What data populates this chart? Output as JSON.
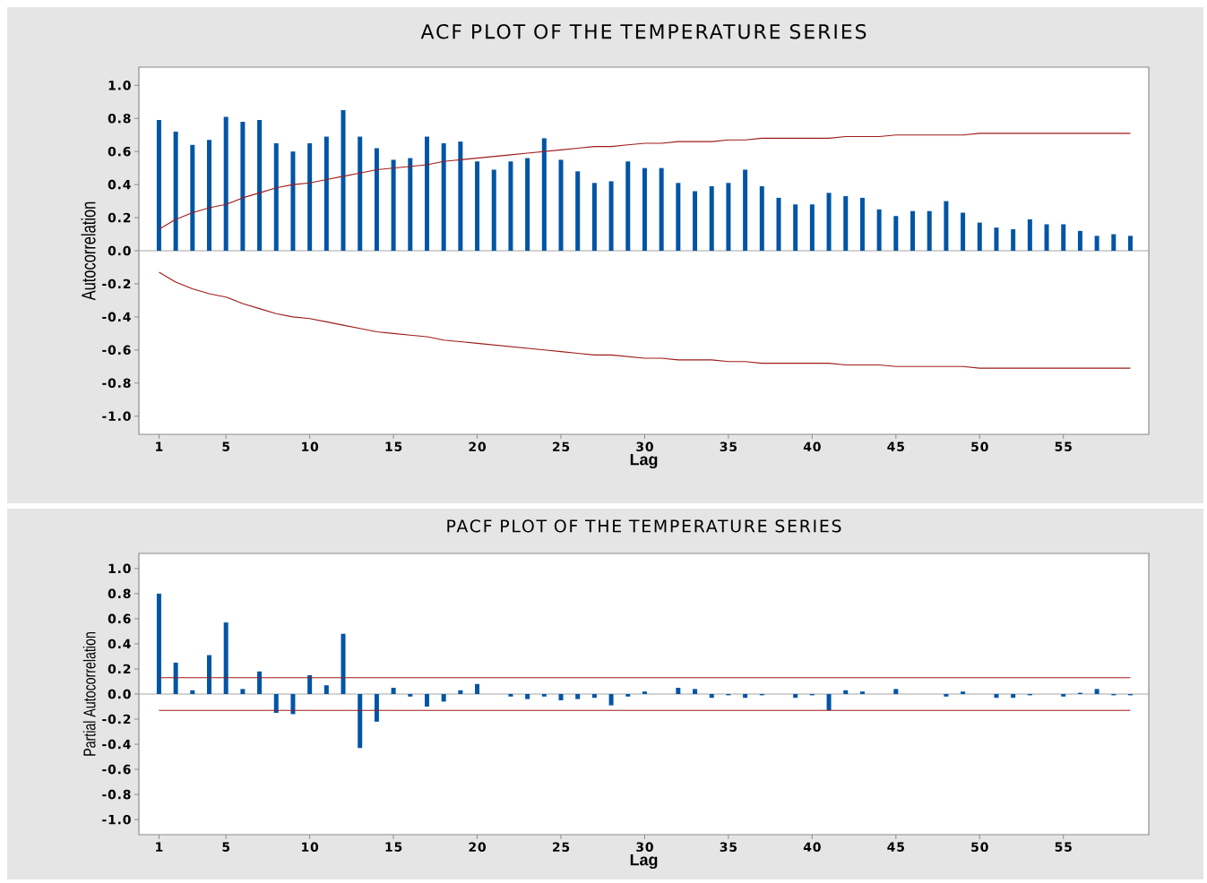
{
  "chart_data": [
    {
      "type": "bar",
      "title": "ACF PLOT OF THE TEMPERATURE SERIES",
      "xlabel": "Lag",
      "ylabel": "Autocorrelation",
      "x": [
        1,
        2,
        3,
        4,
        5,
        6,
        7,
        8,
        9,
        10,
        11,
        12,
        13,
        14,
        15,
        16,
        17,
        18,
        19,
        20,
        21,
        22,
        23,
        24,
        25,
        26,
        27,
        28,
        29,
        30,
        31,
        32,
        33,
        34,
        35,
        36,
        37,
        38,
        39,
        40,
        41,
        42,
        43,
        44,
        45,
        46,
        47,
        48,
        49,
        50,
        51,
        52,
        53,
        54,
        55,
        56,
        57,
        58,
        59
      ],
      "xlim": [
        -0.2,
        60.1
      ],
      "xticks": [
        1,
        5,
        10,
        15,
        20,
        25,
        30,
        35,
        40,
        45,
        50,
        55
      ],
      "ylim": [
        -1.11,
        1.11
      ],
      "yticks": [
        {
          "value": 1.0,
          "label": "1.0"
        },
        0.8,
        0.6,
        0.4,
        0.2,
        {
          "value": 0.0,
          "label": "0.0"
        },
        -0.2,
        -0.4,
        -0.6,
        -0.8,
        {
          "value": -1.0,
          "label": "-1.0"
        }
      ],
      "series": [
        {
          "color": "#0055a5",
          "values": [
            0.79,
            0.72,
            0.64,
            0.67,
            0.81,
            0.78,
            0.79,
            0.65,
            0.6,
            0.65,
            0.69,
            0.85,
            0.69,
            0.62,
            0.55,
            0.56,
            0.69,
            0.65,
            0.66,
            0.54,
            0.49,
            0.54,
            0.56,
            0.68,
            0.55,
            0.48,
            0.41,
            0.42,
            0.54,
            0.5,
            0.5,
            0.41,
            0.36,
            0.39,
            0.41,
            0.49,
            0.39,
            0.32,
            0.28,
            0.28,
            0.35,
            0.33,
            0.32,
            0.25,
            0.21,
            0.24,
            0.24,
            0.3,
            0.23,
            0.17,
            0.14,
            0.13,
            0.19,
            0.16,
            0.16,
            0.12,
            0.09,
            0.1,
            0.09
          ]
        },
        {
          "type": "line",
          "color": "#9e1b1b",
          "values": [
            0.13,
            0.19,
            0.23,
            0.26,
            0.28,
            0.32,
            0.35,
            0.38,
            0.4,
            0.41,
            0.43,
            0.45,
            0.47,
            0.49,
            0.5,
            0.51,
            0.52,
            0.54,
            0.55,
            0.56,
            0.57,
            0.58,
            0.59,
            0.6,
            0.61,
            0.62,
            0.63,
            0.63,
            0.64,
            0.65,
            0.65,
            0.66,
            0.66,
            0.66,
            0.67,
            0.67,
            0.68,
            0.68,
            0.68,
            0.68,
            0.68,
            0.69,
            0.69,
            0.69,
            0.7,
            0.7,
            0.7,
            0.7,
            0.7,
            0.71,
            0.71,
            0.71,
            0.71,
            0.71,
            0.71,
            0.71,
            0.71,
            0.71,
            0.71
          ]
        },
        {
          "type": "line",
          "color": "#9e1b1b",
          "values": [
            -0.13,
            -0.19,
            -0.23,
            -0.26,
            -0.28,
            -0.32,
            -0.35,
            -0.38,
            -0.4,
            -0.41,
            -0.43,
            -0.45,
            -0.47,
            -0.49,
            -0.5,
            -0.51,
            -0.52,
            -0.54,
            -0.55,
            -0.56,
            -0.57,
            -0.58,
            -0.59,
            -0.6,
            -0.61,
            -0.62,
            -0.63,
            -0.63,
            -0.64,
            -0.65,
            -0.65,
            -0.66,
            -0.66,
            -0.66,
            -0.67,
            -0.67,
            -0.68,
            -0.68,
            -0.68,
            -0.68,
            -0.68,
            -0.69,
            -0.69,
            -0.69,
            -0.7,
            -0.7,
            -0.7,
            -0.7,
            -0.7,
            -0.71,
            -0.71,
            -0.71,
            -0.71,
            -0.71,
            -0.71,
            -0.71,
            -0.71,
            -0.71,
            -0.71
          ]
        }
      ]
    },
    {
      "type": "bar",
      "title": "PACF PLOT OF THE TEMPERATURE SERIES",
      "xlabel": "Lag",
      "ylabel": "Partial Autocorrelation",
      "x": [
        1,
        2,
        3,
        4,
        5,
        6,
        7,
        8,
        9,
        10,
        11,
        12,
        13,
        14,
        15,
        16,
        17,
        18,
        19,
        20,
        21,
        22,
        23,
        24,
        25,
        26,
        27,
        28,
        29,
        30,
        31,
        32,
        33,
        34,
        35,
        36,
        37,
        38,
        39,
        40,
        41,
        42,
        43,
        44,
        45,
        46,
        47,
        48,
        49,
        50,
        51,
        52,
        53,
        54,
        55,
        56,
        57,
        58,
        59
      ],
      "xlim": [
        -0.2,
        60.1
      ],
      "xticks": [
        1,
        5,
        10,
        15,
        20,
        25,
        30,
        35,
        40,
        45,
        50,
        55
      ],
      "ylim": [
        -1.12,
        1.12
      ],
      "yticks": [
        {
          "value": 1.0,
          "label": "1.0"
        },
        0.8,
        0.6,
        0.4,
        0.2,
        {
          "value": 0.0,
          "label": "0.0"
        },
        -0.2,
        -0.4,
        -0.6,
        -0.8,
        {
          "value": -1.0,
          "label": "-1.0"
        }
      ],
      "series": [
        {
          "color": "#0055a5",
          "values": [
            0.8,
            0.25,
            0.03,
            0.31,
            0.57,
            0.04,
            0.18,
            -0.15,
            -0.16,
            0.15,
            0.07,
            0.48,
            -0.43,
            -0.22,
            0.05,
            -0.02,
            -0.1,
            -0.06,
            0.03,
            0.08,
            0,
            -0.02,
            -0.04,
            -0.02,
            -0.05,
            -0.04,
            -0.03,
            -0.09,
            -0.02,
            0.02,
            0,
            0.05,
            0.04,
            -0.03,
            -0.01,
            -0.03,
            -0.01,
            0,
            -0.03,
            -0.01,
            -0.13,
            0.03,
            0.02,
            0,
            0.04,
            0,
            0,
            -0.02,
            0.02,
            0,
            -0.03,
            -0.03,
            -0.01,
            0,
            -0.02,
            0.01,
            0.04,
            -0.01,
            -0.01
          ]
        },
        {
          "type": "line",
          "color": "#9e1b1b",
          "values": [
            0.13,
            0.13,
            0.13,
            0.13,
            0.13,
            0.13,
            0.13,
            0.13,
            0.13,
            0.13,
            0.13,
            0.13,
            0.13,
            0.13,
            0.13,
            0.13,
            0.13,
            0.13,
            0.13,
            0.13,
            0.13,
            0.13,
            0.13,
            0.13,
            0.13,
            0.13,
            0.13,
            0.13,
            0.13,
            0.13,
            0.13,
            0.13,
            0.13,
            0.13,
            0.13,
            0.13,
            0.13,
            0.13,
            0.13,
            0.13,
            0.13,
            0.13,
            0.13,
            0.13,
            0.13,
            0.13,
            0.13,
            0.13,
            0.13,
            0.13,
            0.13,
            0.13,
            0.13,
            0.13,
            0.13,
            0.13,
            0.13,
            0.13,
            0.13
          ]
        },
        {
          "type": "line",
          "color": "#9e1b1b",
          "values": [
            -0.13,
            -0.13,
            -0.13,
            -0.13,
            -0.13,
            -0.13,
            -0.13,
            -0.13,
            -0.13,
            -0.13,
            -0.13,
            -0.13,
            -0.13,
            -0.13,
            -0.13,
            -0.13,
            -0.13,
            -0.13,
            -0.13,
            -0.13,
            -0.13,
            -0.13,
            -0.13,
            -0.13,
            -0.13,
            -0.13,
            -0.13,
            -0.13,
            -0.13,
            -0.13,
            -0.13,
            -0.13,
            -0.13,
            -0.13,
            -0.13,
            -0.13,
            -0.13,
            -0.13,
            -0.13,
            -0.13,
            -0.13,
            -0.13,
            -0.13,
            -0.13,
            -0.13,
            -0.13,
            -0.13,
            -0.13,
            -0.13,
            -0.13,
            -0.13,
            -0.13,
            -0.13,
            -0.13,
            -0.13,
            -0.13,
            -0.13,
            -0.13,
            -0.13
          ]
        }
      ]
    }
  ]
}
